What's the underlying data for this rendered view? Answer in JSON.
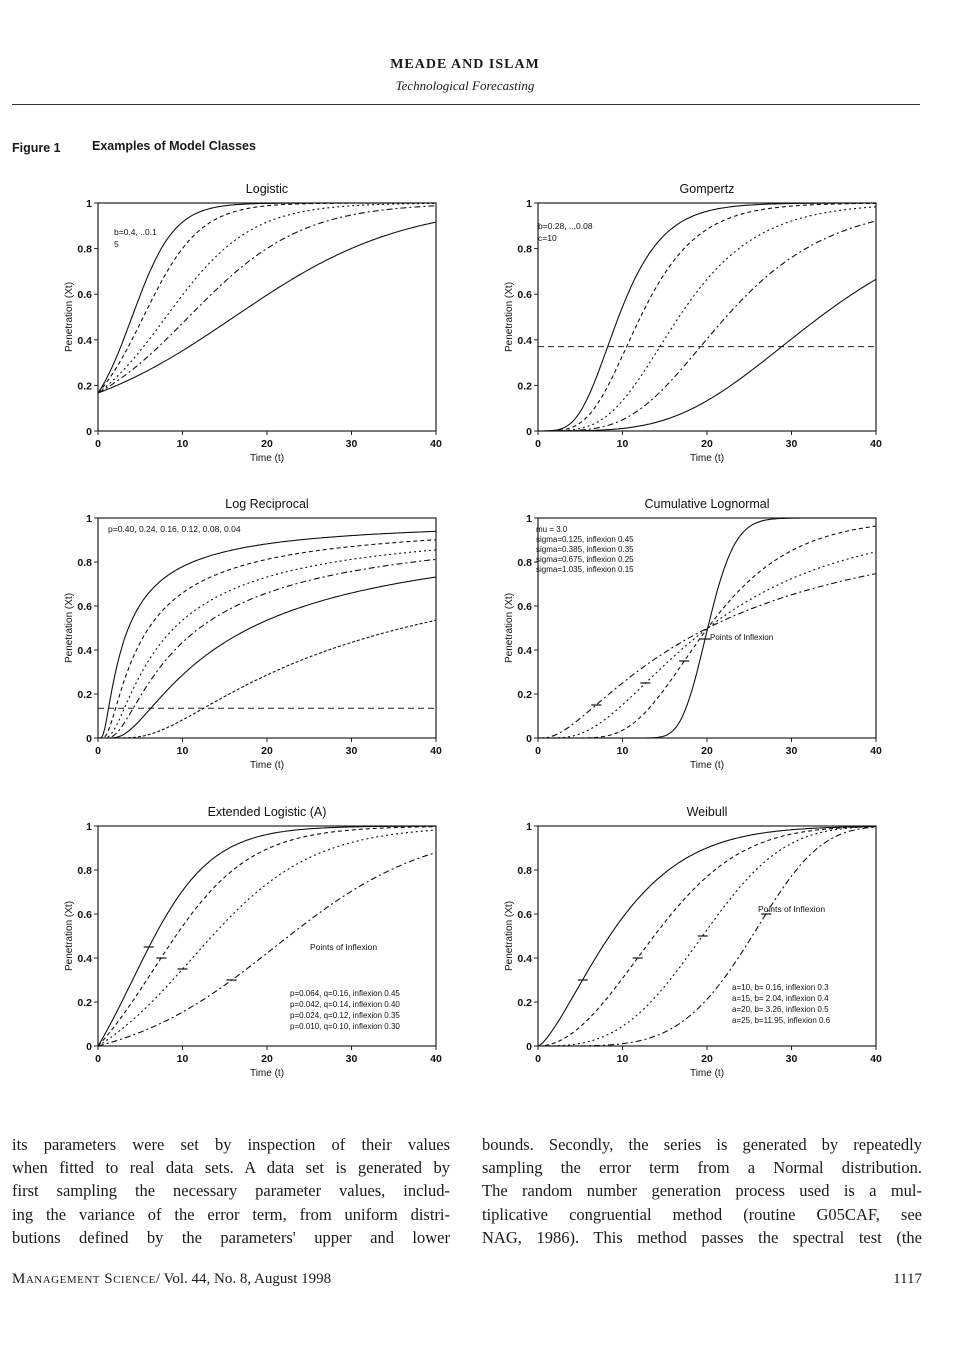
{
  "header": {
    "authors": "MEADE AND ISLAM",
    "subtitle": "Technological Forecasting"
  },
  "figure": {
    "label": "Figure 1",
    "caption": "Examples of Model Classes"
  },
  "panels": [
    {
      "id": "logistic",
      "title": "Logistic",
      "ylabel": "Penetration (Xt)",
      "xlabel": "Time (t)",
      "xticks": [
        "0",
        "10",
        "20",
        "30",
        "40"
      ],
      "yticks": [
        "0",
        "0.2",
        "0.4",
        "0.6",
        "0.8",
        "1"
      ],
      "annotations": [
        "b=0.4, ..0.1",
        "5"
      ],
      "chart_data": {
        "type": "line",
        "xlim": [
          0,
          40
        ],
        "ylim": [
          0,
          1
        ],
        "series": [
          {
            "name": "b=0.4",
            "a": 5,
            "b": 0.4
          },
          {
            "name": "b=0.3",
            "a": 5,
            "b": 0.3
          },
          {
            "name": "b=0.2",
            "a": 5,
            "b": 0.2
          },
          {
            "name": "b=0.15",
            "a": 5,
            "b": 0.15
          },
          {
            "name": "b=0.1",
            "a": 5,
            "b": 0.1
          }
        ]
      }
    },
    {
      "id": "gompertz",
      "title": "Gompertz",
      "ylabel": "Penetration (Xt)",
      "xlabel": "Time (t)",
      "xticks": [
        "0",
        "10",
        "20",
        "30",
        "40"
      ],
      "yticks": [
        "0",
        "0.2",
        "0.4",
        "0.6",
        "0.8",
        "1"
      ],
      "annotations": [
        "b=0.28, ..,0.08",
        "c=10"
      ],
      "chart_data": {
        "type": "line",
        "xlim": [
          0,
          40
        ],
        "ylim": [
          0,
          1
        ],
        "reference_line_y": 0.37,
        "series": [
          {
            "name": "b=0.28",
            "c": 10,
            "b": 0.28
          },
          {
            "name": "b=0.22",
            "c": 10,
            "b": 0.22
          },
          {
            "name": "b=0.16",
            "c": 10,
            "b": 0.16
          },
          {
            "name": "b=0.12",
            "c": 10,
            "b": 0.12
          },
          {
            "name": "b=0.08",
            "c": 10,
            "b": 0.08
          }
        ]
      }
    },
    {
      "id": "logreciprocal",
      "title": "Log Reciprocal",
      "ylabel": "Penetration (Xt)",
      "xlabel": "Time (t)",
      "xticks": [
        "0",
        "10",
        "20",
        "30",
        "40"
      ],
      "yticks": [
        "0",
        "0.2",
        "0.4",
        "0.6",
        "0.8",
        "1"
      ],
      "annotations": [
        "p=0.40, 0.24, 0.16, 0.12, 0.08, 0.04"
      ],
      "chart_data": {
        "type": "line",
        "xlim": [
          0,
          40
        ],
        "ylim": [
          0,
          1
        ],
        "reference_line_y": 0.135,
        "series": [
          {
            "name": "p=0.40",
            "p": 0.4
          },
          {
            "name": "p=0.24",
            "p": 0.24
          },
          {
            "name": "p=0.16",
            "p": 0.16
          },
          {
            "name": "p=0.12",
            "p": 0.12
          },
          {
            "name": "p=0.08",
            "p": 0.08
          },
          {
            "name": "p=0.04",
            "p": 0.04
          }
        ]
      }
    },
    {
      "id": "cumlognormal",
      "title": "Cumulative Lognormal",
      "ylabel": "Penetration (Xt)",
      "xlabel": "Time (t)",
      "xticks": [
        "0",
        "10",
        "20",
        "30",
        "40"
      ],
      "yticks": [
        "0",
        "0.2",
        "0.4",
        "0.6",
        "0.8",
        "1"
      ],
      "annotations": [
        "mu = 3.0",
        "sigma=0.125, inflexion 0.45",
        "sigma=0.385, inflexion 0.35",
        "sigma=0.675, inflexion 0.25",
        "sigma=1.035, inflexion 0.15",
        "Points of Inflexion"
      ],
      "chart_data": {
        "type": "line",
        "xlim": [
          0,
          40
        ],
        "ylim": [
          0,
          1
        ],
        "mu": 3.0,
        "series": [
          {
            "name": "sigma=0.125",
            "sigma": 0.125,
            "inflexion": 0.45
          },
          {
            "name": "sigma=0.385",
            "sigma": 0.385,
            "inflexion": 0.35
          },
          {
            "name": "sigma=0.675",
            "sigma": 0.675,
            "inflexion": 0.25
          },
          {
            "name": "sigma=1.035",
            "sigma": 1.035,
            "inflexion": 0.15
          }
        ]
      }
    },
    {
      "id": "extlogistic",
      "title": "Extended Logistic (A)",
      "ylabel": "Penetration (Xt)",
      "xlabel": "Time (t)",
      "xticks": [
        "0",
        "10",
        "20",
        "30",
        "40"
      ],
      "yticks": [
        "0",
        "0.2",
        "0.4",
        "0.6",
        "0.8",
        "1"
      ],
      "annotations": [
        "Points of Inflexion",
        "p=0.064, q=0.16, inflexion 0.45",
        "p=0.042, q=0.14, inflexion 0.40",
        "p=0.024, q=0.12, inflexion 0.35",
        "p=0.010, q=0.10, inflexion 0.30"
      ],
      "chart_data": {
        "type": "line",
        "xlim": [
          0,
          40
        ],
        "ylim": [
          0,
          1
        ],
        "series": [
          {
            "name": "p=0.064",
            "p": 0.064,
            "q": 0.16,
            "inflexion": 0.45
          },
          {
            "name": "p=0.042",
            "p": 0.042,
            "q": 0.14,
            "inflexion": 0.4
          },
          {
            "name": "p=0.024",
            "p": 0.024,
            "q": 0.12,
            "inflexion": 0.35
          },
          {
            "name": "p=0.010",
            "p": 0.01,
            "q": 0.1,
            "inflexion": 0.3
          }
        ]
      }
    },
    {
      "id": "weibull",
      "title": "Weibull",
      "ylabel": "Penetration (Xt)",
      "xlabel": "Time (t)",
      "xticks": [
        "0",
        "10",
        "20",
        "30",
        "40"
      ],
      "yticks": [
        "0",
        "0.2",
        "0.4",
        "0.6",
        "0.8",
        "1"
      ],
      "annotations": [
        "Points of Inflexion",
        "a=10, b= 0.16, inflexion 0.3",
        "a=15, b= 2.04, inflexion 0.4",
        "a=20, b= 3.26, inflexion 0.5",
        "a=25, b=11.95, inflexion 0.6"
      ],
      "chart_data": {
        "type": "line",
        "xlim": [
          0,
          40
        ],
        "ylim": [
          0,
          1
        ],
        "series": [
          {
            "name": "a=10",
            "a": 10,
            "inflexion": 0.3
          },
          {
            "name": "a=15",
            "a": 15,
            "inflexion": 0.4
          },
          {
            "name": "a=20",
            "a": 20,
            "inflexion": 0.5
          },
          {
            "name": "a=25",
            "a": 25,
            "inflexion": 0.6
          }
        ]
      }
    }
  ],
  "body": {
    "left_lines": [
      "its parameters were set by inspection of their values",
      "when fitted to real data sets. A data set is generated by",
      "first sampling the necessary parameter values, includ-",
      "ing the variance of the error term, from uniform distri-",
      "butions defined by the parameters' upper and lower"
    ],
    "right_lines": [
      "bounds. Secondly, the series is generated by repeatedly",
      "sampling the error term from a Normal distribution.",
      "The random number generation process used is a mul-",
      "tiplicative congruential method (routine G05CAF, see",
      "NAG, 1986). This method passes the spectral test (the"
    ]
  },
  "footer": {
    "journal": "Management Science",
    "volume": "/ Vol. 44, No. 8, August 1998",
    "page": "1117"
  }
}
